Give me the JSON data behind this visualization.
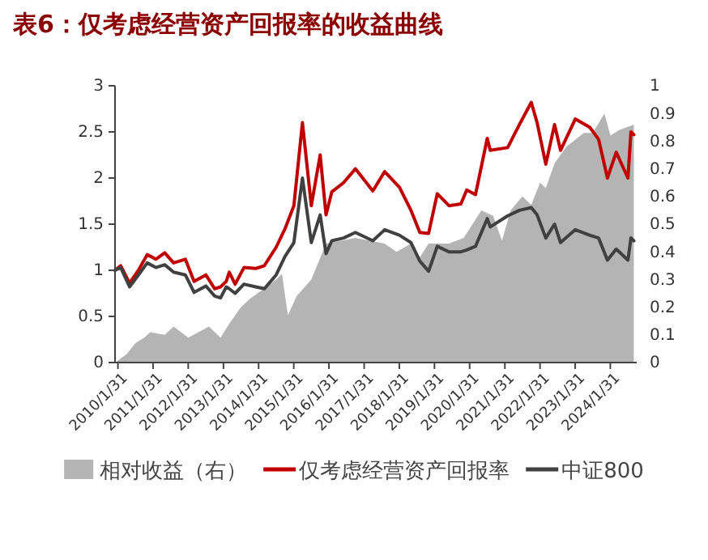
{
  "chart_data": {
    "type": "line",
    "title": "表6：仅考虑经营资产回报率的收益曲线",
    "legend": "bottom",
    "xlim": [
      "2010-01-01",
      "2024-10-31"
    ],
    "xticks": [
      {
        "value": "2010-01-31",
        "label": "2010/1/31"
      },
      {
        "value": "2011-01-31",
        "label": "2011/1/31"
      },
      {
        "value": "2012-01-31",
        "label": "2012/1/31"
      },
      {
        "value": "2013-01-31",
        "label": "2013/1/31"
      },
      {
        "value": "2014-01-31",
        "label": "2014/1/31"
      },
      {
        "value": "2015-01-31",
        "label": "2015/1/31"
      },
      {
        "value": "2016-01-31",
        "label": "2016/1/31"
      },
      {
        "value": "2017-01-31",
        "label": "2017/1/31"
      },
      {
        "value": "2018-01-31",
        "label": "2018/1/31"
      },
      {
        "value": "2019-01-31",
        "label": "2019/1/31"
      },
      {
        "value": "2020-01-31",
        "label": "2020/1/31"
      },
      {
        "value": "2021-01-31",
        "label": "2021/1/31"
      },
      {
        "value": "2022-01-31",
        "label": "2022/1/31"
      },
      {
        "value": "2023-01-31",
        "label": "2023/1/31"
      },
      {
        "value": "2024-01-31",
        "label": "2024/1/31"
      }
    ],
    "ylim": [
      0,
      3
    ],
    "yticks": [
      0,
      0.5,
      1,
      1.5,
      2,
      2.5,
      3
    ],
    "y2lim": [
      0,
      1
    ],
    "y2ticks": [
      0,
      0.1,
      0.2,
      0.3,
      0.4,
      0.5,
      0.6,
      0.7,
      0.8,
      0.9,
      1
    ],
    "series": [
      {
        "name": "相对收益（右）",
        "type": "area",
        "axis": "y2",
        "color": "#b4b4b4",
        "x": [
          "2010-01",
          "2010-05",
          "2010-08",
          "2010-11",
          "2011-01",
          "2011-06",
          "2011-09",
          "2012-02",
          "2012-09",
          "2013-01",
          "2013-04",
          "2013-08",
          "2013-11",
          "2014-03",
          "2014-08",
          "2014-10",
          "2014-12",
          "2015-03",
          "2015-08",
          "2016-01",
          "2016-11",
          "2017-09",
          "2018-01",
          "2018-06",
          "2018-09",
          "2018-12",
          "2019-07",
          "2019-12",
          "2020-06",
          "2020-10",
          "2021-01",
          "2021-04",
          "2021-08",
          "2021-11",
          "2022-02",
          "2022-04",
          "2022-07",
          "2022-11",
          "2023-05",
          "2023-08",
          "2023-12",
          "2024-02",
          "2024-05",
          "2024-10"
        ],
        "values": [
          0,
          0.03,
          0.07,
          0.09,
          0.11,
          0.1,
          0.13,
          0.09,
          0.13,
          0.09,
          0.14,
          0.2,
          0.23,
          0.26,
          0.3,
          0.32,
          0.17,
          0.24,
          0.3,
          0.43,
          0.45,
          0.43,
          0.4,
          0.43,
          0.38,
          0.43,
          0.43,
          0.45,
          0.55,
          0.53,
          0.44,
          0.55,
          0.6,
          0.57,
          0.65,
          0.63,
          0.72,
          0.78,
          0.83,
          0.83,
          0.9,
          0.82,
          0.84,
          0.86
        ]
      },
      {
        "name": "仅考虑经营资产回报率",
        "color": "#c00000",
        "x": [
          "2010-01",
          "2010-03",
          "2010-06",
          "2010-09",
          "2010-12",
          "2011-03",
          "2011-06",
          "2011-09",
          "2012-01",
          "2012-04",
          "2012-08",
          "2012-11",
          "2013-01",
          "2013-03",
          "2013-04",
          "2013-06",
          "2013-09",
          "2014-01",
          "2014-04",
          "2014-08",
          "2014-11",
          "2015-02",
          "2015-05",
          "2015-08",
          "2015-11",
          "2016-01",
          "2016-03",
          "2016-07",
          "2016-11",
          "2017-05",
          "2017-09",
          "2018-02",
          "2018-06",
          "2018-09",
          "2018-12",
          "2019-03",
          "2019-07",
          "2019-11",
          "2020-01",
          "2020-04",
          "2020-08",
          "2020-09",
          "2021-03",
          "2021-07",
          "2021-11",
          "2022-01",
          "2022-04",
          "2022-07",
          "2022-09",
          "2023-02",
          "2023-07",
          "2023-10",
          "2024-01",
          "2024-04",
          "2024-08",
          "2024-09",
          "2024-10"
        ],
        "values": [
          1.0,
          1.05,
          0.86,
          1.0,
          1.17,
          1.12,
          1.19,
          1.08,
          1.12,
          0.88,
          0.95,
          0.8,
          0.82,
          0.88,
          0.98,
          0.85,
          1.03,
          1.02,
          1.05,
          1.25,
          1.45,
          1.7,
          2.6,
          1.7,
          2.25,
          1.6,
          1.85,
          1.95,
          2.1,
          1.86,
          2.07,
          1.9,
          1.65,
          1.41,
          1.4,
          1.83,
          1.7,
          1.72,
          1.87,
          1.82,
          2.43,
          2.3,
          2.33,
          2.58,
          2.82,
          2.6,
          2.15,
          2.58,
          2.3,
          2.64,
          2.55,
          2.42,
          2.0,
          2.28,
          2.0,
          2.5,
          2.47
        ]
      },
      {
        "name": "中证800",
        "color": "#404040",
        "x": [
          "2010-01",
          "2010-03",
          "2010-06",
          "2010-09",
          "2010-12",
          "2011-03",
          "2011-06",
          "2011-09",
          "2012-01",
          "2012-04",
          "2012-08",
          "2012-11",
          "2013-01",
          "2013-03",
          "2013-04",
          "2013-06",
          "2013-09",
          "2014-01",
          "2014-04",
          "2014-08",
          "2014-11",
          "2015-02",
          "2015-05",
          "2015-08",
          "2015-11",
          "2016-01",
          "2016-03",
          "2016-07",
          "2016-11",
          "2017-05",
          "2017-09",
          "2018-02",
          "2018-06",
          "2018-09",
          "2018-12",
          "2019-03",
          "2019-07",
          "2019-11",
          "2020-01",
          "2020-04",
          "2020-08",
          "2020-09",
          "2021-03",
          "2021-07",
          "2021-11",
          "2022-01",
          "2022-04",
          "2022-07",
          "2022-09",
          "2023-02",
          "2023-07",
          "2023-10",
          "2024-01",
          "2024-04",
          "2024-08",
          "2024-09",
          "2024-10"
        ],
        "values": [
          1.0,
          1.03,
          0.82,
          0.95,
          1.08,
          1.03,
          1.06,
          0.98,
          0.95,
          0.76,
          0.83,
          0.72,
          0.7,
          0.82,
          0.8,
          0.75,
          0.85,
          0.82,
          0.8,
          0.95,
          1.15,
          1.3,
          2.0,
          1.3,
          1.6,
          1.18,
          1.32,
          1.35,
          1.41,
          1.32,
          1.44,
          1.38,
          1.3,
          1.1,
          0.99,
          1.26,
          1.2,
          1.2,
          1.22,
          1.26,
          1.56,
          1.47,
          1.59,
          1.65,
          1.68,
          1.6,
          1.35,
          1.5,
          1.3,
          1.44,
          1.38,
          1.35,
          1.11,
          1.23,
          1.11,
          1.35,
          1.32
        ]
      }
    ]
  }
}
